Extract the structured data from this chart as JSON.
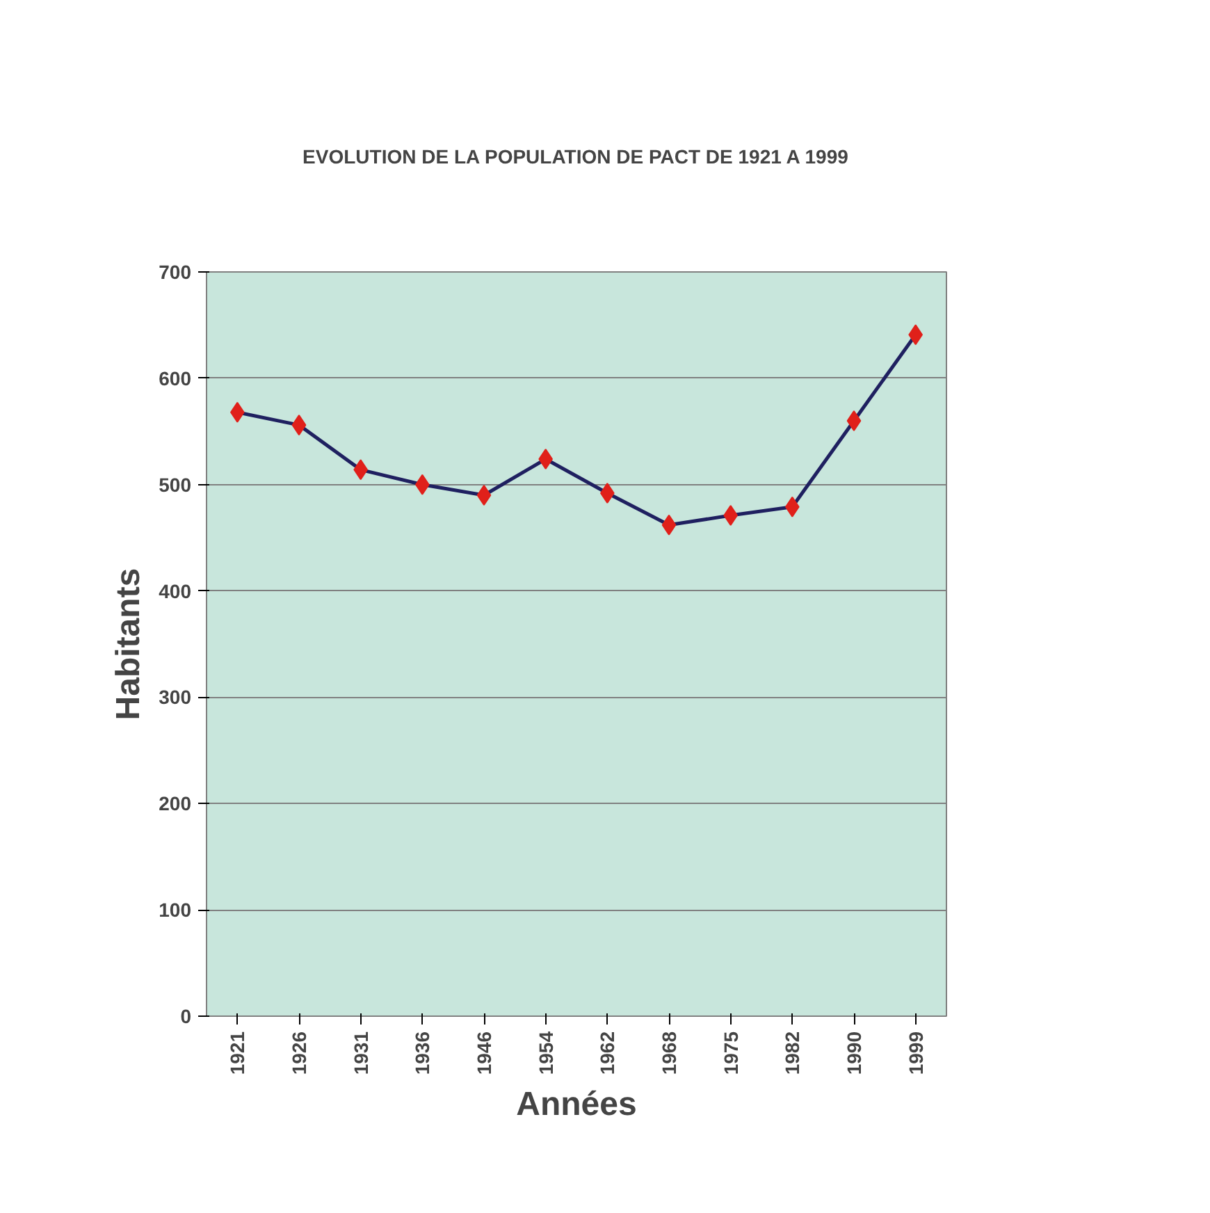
{
  "chart_data": {
    "type": "line",
    "title": "EVOLUTION DE LA POPULATION DE PACT DE 1921 A 1999",
    "xlabel": "Années",
    "ylabel": "Habitants",
    "categories": [
      "1921",
      "1926",
      "1931",
      "1936",
      "1946",
      "1954",
      "1962",
      "1968",
      "1975",
      "1982",
      "1990",
      "1999"
    ],
    "series": [
      {
        "color": "#1f2060",
        "colors": [
          "#e0201a",
          "#e0201a",
          "#e0201a",
          "#e0201a",
          "#e0201a",
          "#e0201a",
          "#e0201a",
          "#e0201a",
          "#e0201a",
          "#e0201a",
          "#e0201a",
          "#e0201a"
        ],
        "values": [
          568,
          556,
          514,
          500,
          490,
          524,
          492,
          462,
          471,
          479,
          560,
          641
        ]
      }
    ],
    "ylim": [
      0,
      700
    ],
    "yticks": [
      0,
      100,
      200,
      300,
      400,
      500,
      600,
      700
    ],
    "grid": "y",
    "marker": "diamond",
    "line_style": "solid"
  }
}
